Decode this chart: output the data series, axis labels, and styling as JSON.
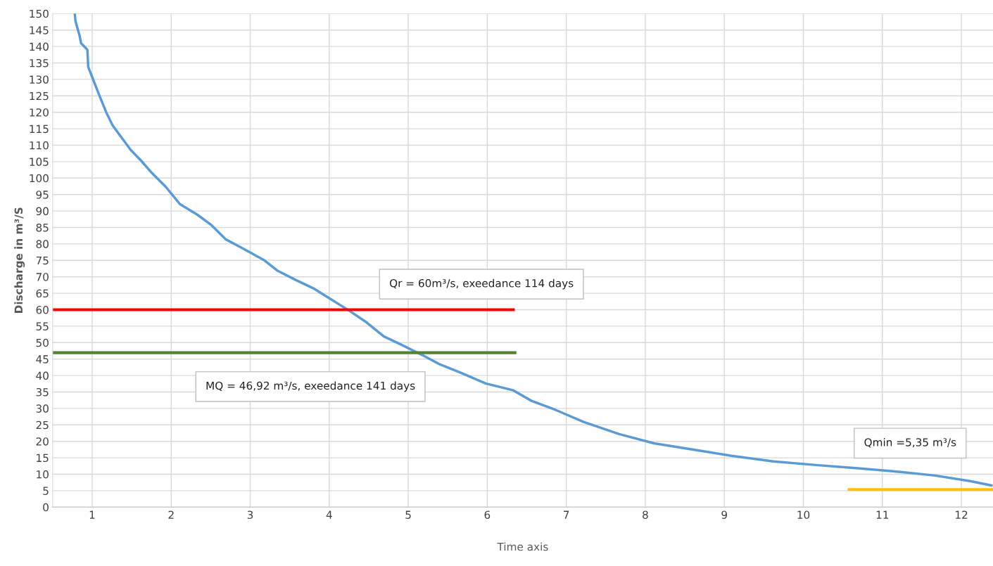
{
  "chart_data": {
    "type": "line",
    "xlabel": "Time axis",
    "ylabel": "Discharge in m³/S",
    "xlim": [
      0.5,
      12.4
    ],
    "xticks": [
      1,
      2,
      3,
      4,
      5,
      6,
      7,
      8,
      9,
      10,
      11,
      12
    ],
    "ylim": [
      0,
      150
    ],
    "yticks": [
      0,
      5,
      10,
      15,
      20,
      25,
      30,
      35,
      40,
      45,
      50,
      55,
      60,
      65,
      70,
      75,
      80,
      85,
      90,
      95,
      100,
      105,
      110,
      115,
      120,
      125,
      130,
      135,
      140,
      145,
      150
    ],
    "grid": true,
    "marker": "none",
    "line_style": "solid",
    "series": [
      {
        "color": "#5b9bd5",
        "x": [
          0.78,
          0.79,
          0.84,
          0.86,
          0.94,
          0.95,
          1.02,
          1.09,
          1.18,
          1.26,
          1.37,
          1.49,
          1.62,
          1.75,
          1.93,
          2.11,
          2.33,
          2.51,
          2.69,
          2.91,
          3.18,
          3.35,
          3.58,
          3.8,
          4.02,
          4.26,
          4.47,
          4.69,
          4.91,
          5.18,
          5.4,
          5.67,
          5.98,
          6.33,
          6.56,
          6.87,
          7.22,
          7.67,
          8.11,
          8.65,
          9.09,
          9.62,
          10.16,
          10.69,
          11.23,
          11.67,
          12.11,
          12.38
        ],
        "values": [
          150,
          147.6,
          143.4,
          141,
          139,
          133.8,
          129.5,
          125.2,
          119.9,
          116,
          112.4,
          108.5,
          105.3,
          101.7,
          97.4,
          92.1,
          88.9,
          85.7,
          81.4,
          78.6,
          75,
          71.8,
          69,
          66.5,
          63.2,
          59.6,
          56.2,
          51.9,
          49.4,
          46.2,
          43.4,
          40.8,
          37.6,
          35.5,
          32.3,
          29.5,
          25.9,
          22.2,
          19.4,
          17.3,
          15.6,
          13.9,
          12.8,
          11.8,
          10.7,
          9.6,
          7.9,
          6.6
        ]
      },
      {
        "color": "#ff0000",
        "x": [
          0.5,
          6.33
        ],
        "values": [
          60,
          60
        ]
      },
      {
        "color": "#548235",
        "x": [
          0.5,
          6.35
        ],
        "values": [
          46.92,
          46.92
        ]
      },
      {
        "color": "#ffc000",
        "x": [
          10.58,
          12.4
        ],
        "values": [
          5.35,
          5.35
        ]
      }
    ],
    "annotations": [
      "Qr = 60m³/s, exeedance 114 days",
      "MQ = 46,92 m³/s, exeedance 141 days",
      "Qmin =5,35 m³/s"
    ]
  }
}
